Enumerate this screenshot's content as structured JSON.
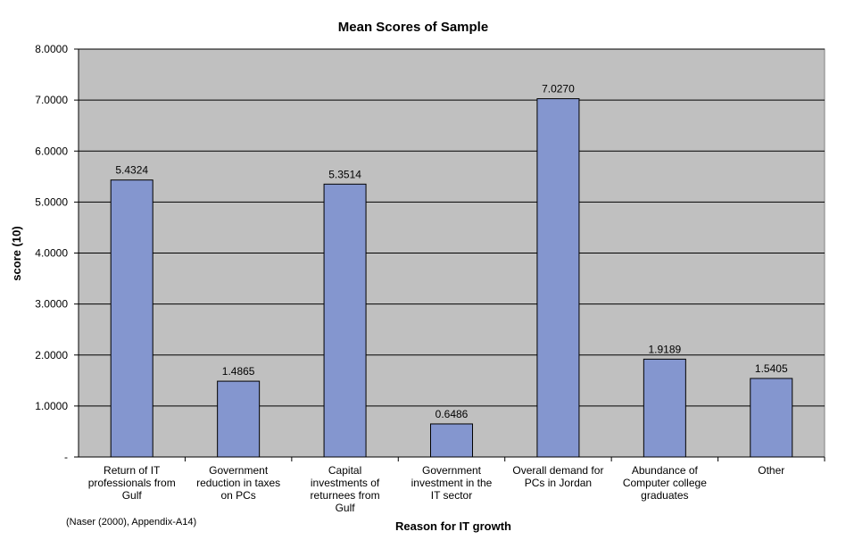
{
  "chart_data": {
    "type": "bar",
    "title": "Mean Scores of Sample",
    "xlabel": "Reason for IT growth",
    "ylabel": "score (10)",
    "ylim": [
      0,
      8
    ],
    "y_ticks": [
      "-",
      "1.0000",
      "2.0000",
      "3.0000",
      "4.0000",
      "5.0000",
      "6.0000",
      "7.0000",
      "8.0000"
    ],
    "categories": [
      [
        "Return of IT",
        "professionals from",
        "Gulf"
      ],
      [
        "Government",
        "reduction in taxes",
        "on PCs"
      ],
      [
        "Capital",
        "investments of",
        "returnees from",
        "Gulf"
      ],
      [
        "Government",
        "investment in the",
        "IT sector"
      ],
      [
        "Overall demand for",
        "PCs in Jordan"
      ],
      [
        "Abundance of",
        "Computer college",
        "graduates"
      ],
      [
        "Other"
      ]
    ],
    "values": [
      5.4324,
      1.4865,
      5.3514,
      0.6486,
      7.027,
      1.9189,
      1.5405
    ],
    "data_labels": [
      "5.4324",
      "1.4865",
      "5.3514",
      "0.6486",
      "7.0270",
      "1.9189",
      "1.5405"
    ],
    "grid": true,
    "legend": "none",
    "colors": {
      "bar": "#8496cf",
      "bar_border": "#000000",
      "plot_bg": "#c0c0c0",
      "gridline": "#000000"
    }
  },
  "source_note": "(Naser (2000), Appendix-A14)"
}
